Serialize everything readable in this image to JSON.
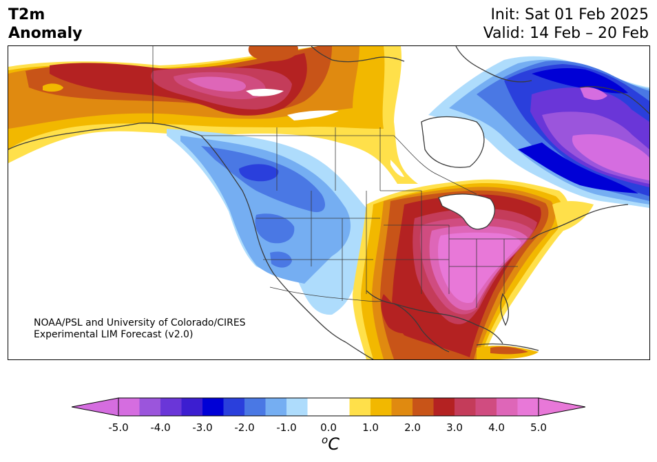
{
  "header": {
    "title_line1": "T2m",
    "title_line2": "Anomaly",
    "init": "Init: Sat 01 Feb 2025",
    "valid": "Valid: 14 Feb – 20 Feb"
  },
  "credit": {
    "line1": "NOAA/PSL and University of Colorado/CIRES",
    "line2": "Experimental LIM Forecast (v2.0)"
  },
  "colorbar": {
    "unit_base": "C",
    "unit_sup": "o",
    "tick_labels": [
      "-5.0",
      "-4.0",
      "-3.0",
      "-2.0",
      "-1.0",
      "0.0",
      "1.0",
      "2.0",
      "3.0",
      "4.0",
      "5.0"
    ],
    "bins": [
      "#d56de0",
      "#9b55dc",
      "#6a36d8",
      "#3c1ed0",
      "#0000d6",
      "#2a3fdc",
      "#4a78e4",
      "#75aef2",
      "#aedcfc",
      "#ffffff",
      "#ffffff",
      "#ffe04a",
      "#f2b800",
      "#e08a10",
      "#c85418",
      "#b42222",
      "#c43c5a",
      "#d04c80",
      "#de66b8",
      "#e878d8"
    ],
    "under_color": "#d56de0",
    "over_color": "#e878d8"
  },
  "map": {
    "colors": {
      "purple_light": "#d56de0",
      "purple": "#9b55dc",
      "indigo": "#6a36d8",
      "deep_blue": "#0000d6",
      "blue": "#2a3fdc",
      "mid_blue": "#4a78e4",
      "light_blue": "#75aef2",
      "pale_blue": "#aedcfc",
      "yellow": "#ffe04a",
      "gold": "#f2b800",
      "orange": "#e08a10",
      "burnt": "#c85418",
      "red": "#b42222",
      "crimson": "#c43c5a",
      "rose": "#d04c80",
      "pink": "#de66b8",
      "magenta": "#e878d8"
    }
  }
}
